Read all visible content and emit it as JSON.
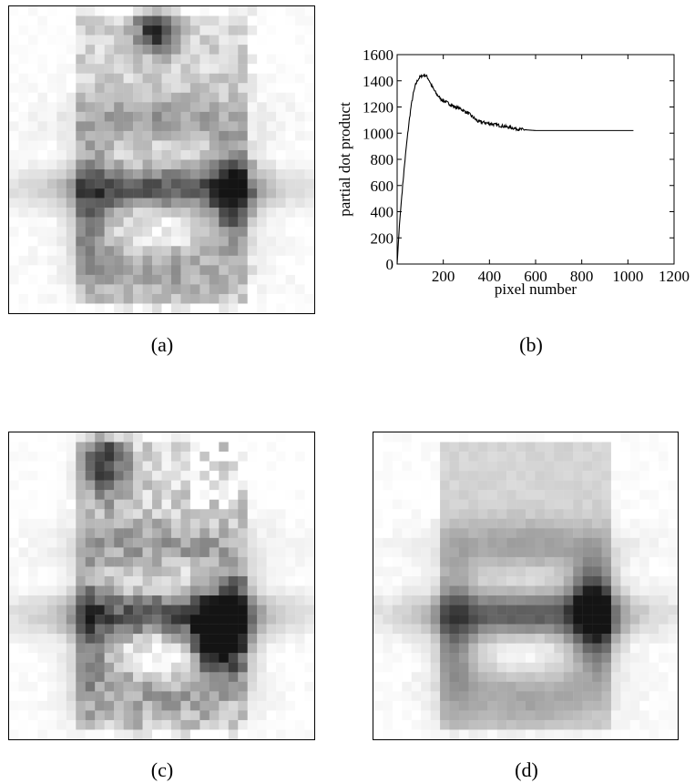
{
  "captions": {
    "a": "(a)",
    "b": "(b)",
    "c": "(c)",
    "d": "(d)"
  },
  "chart_data": {
    "type": "line",
    "title": "",
    "xlabel": "pixel number",
    "ylabel": "partial dot product",
    "xlim": [
      0,
      1200
    ],
    "ylim": [
      0,
      1600
    ],
    "x_ticks": [
      200,
      400,
      600,
      800,
      1000,
      1200
    ],
    "y_ticks": [
      0,
      200,
      400,
      600,
      800,
      1000,
      1200,
      1400,
      1600
    ],
    "grid": false,
    "series": [
      {
        "x": [
          0,
          10,
          20,
          30,
          40,
          50,
          60,
          70,
          80,
          90,
          100,
          110,
          120,
          130,
          140,
          150,
          170,
          190,
          210,
          230,
          250,
          270,
          290,
          310,
          330,
          350,
          380,
          410,
          440,
          470,
          500,
          530,
          560,
          600,
          700,
          800,
          900,
          1024
        ],
        "y": [
          0,
          300,
          520,
          720,
          900,
          1060,
          1200,
          1300,
          1370,
          1410,
          1430,
          1440,
          1445,
          1430,
          1400,
          1360,
          1300,
          1260,
          1240,
          1220,
          1200,
          1190,
          1170,
          1150,
          1120,
          1090,
          1080,
          1070,
          1060,
          1050,
          1040,
          1030,
          1025,
          1020,
          1020,
          1020,
          1020,
          1020
        ]
      }
    ]
  }
}
